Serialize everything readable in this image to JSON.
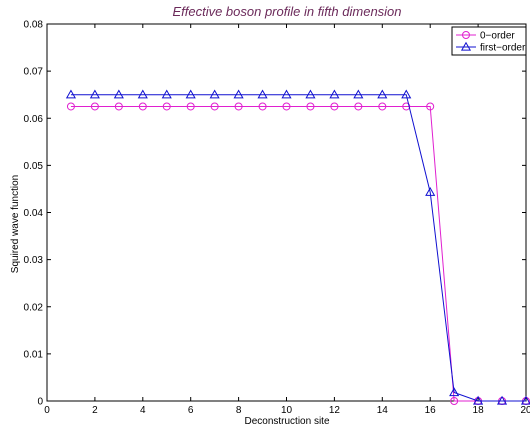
{
  "chart_data": {
    "type": "line",
    "title": "Effective boson profile in fifth dimension",
    "title_color": "#6b2a5a",
    "xlabel": "Deconstruction site",
    "ylabel": "Squired wave function",
    "xlim": [
      0,
      20
    ],
    "ylim": [
      0,
      0.08
    ],
    "xticks": [
      0,
      2,
      4,
      6,
      8,
      10,
      12,
      14,
      16,
      18,
      20
    ],
    "yticks": [
      0,
      0.01,
      0.02,
      0.03,
      0.04,
      0.05,
      0.06,
      0.07,
      0.08
    ],
    "ytick_labels": [
      "0",
      "0.01",
      "0.02",
      "0.03",
      "0.04",
      "0.05",
      "0.06",
      "0.07",
      "0.08"
    ],
    "grid": false,
    "legend_position": "top-right",
    "x": [
      1,
      2,
      3,
      4,
      5,
      6,
      7,
      8,
      9,
      10,
      11,
      12,
      13,
      14,
      15,
      16,
      17,
      18,
      19,
      20
    ],
    "series": [
      {
        "name": "0−order",
        "color": "#e020d0",
        "marker": "circle",
        "values": [
          0.0625,
          0.0625,
          0.0625,
          0.0625,
          0.0625,
          0.0625,
          0.0625,
          0.0625,
          0.0625,
          0.0625,
          0.0625,
          0.0625,
          0.0625,
          0.0625,
          0.0625,
          0.0625,
          0,
          0,
          0,
          0
        ]
      },
      {
        "name": "first−order",
        "color": "#1010d0",
        "marker": "triangle",
        "values": [
          0.065,
          0.065,
          0.065,
          0.065,
          0.065,
          0.065,
          0.065,
          0.065,
          0.065,
          0.065,
          0.065,
          0.065,
          0.065,
          0.065,
          0.065,
          0.0443,
          0.0018,
          0,
          0,
          0
        ]
      }
    ]
  }
}
